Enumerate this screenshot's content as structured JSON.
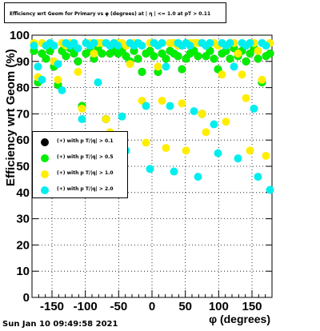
{
  "title": "Efficiency wrt Geom for Primary vs φ (degrees) at | η | <= 1.0 at pT > 0.11",
  "timestamp": "Sun Jan 10 09:49:58 2021",
  "chart_data": {
    "type": "scatter",
    "title": "Efficiency wrt Geom for Primary vs φ (degrees) at | η | <= 1.0 at pT > 0.11",
    "xlabel": "φ (degrees)",
    "ylabel": "Efficiency wrt Geom (%)",
    "xlim": [
      -180,
      180
    ],
    "ylim": [
      0,
      100
    ],
    "xticks": [
      -150,
      -100,
      -50,
      0,
      50,
      100,
      150
    ],
    "yticks": [
      0,
      10,
      20,
      30,
      40,
      50,
      60,
      70,
      80,
      90,
      100
    ],
    "grid": true,
    "legend_position": "center-left",
    "x": [
      -177,
      -171,
      -165,
      -159,
      -153,
      -147,
      -141,
      -135,
      -129,
      -123,
      -117,
      -111,
      -105,
      -99,
      -93,
      -87,
      -81,
      -75,
      -69,
      -63,
      -57,
      -51,
      -45,
      -39,
      -33,
      -27,
      -21,
      -15,
      -9,
      -3,
      3,
      9,
      15,
      21,
      27,
      33,
      39,
      45,
      51,
      57,
      63,
      69,
      75,
      81,
      87,
      93,
      99,
      105,
      111,
      117,
      123,
      129,
      135,
      141,
      147,
      153,
      159,
      165,
      171,
      177
    ],
    "series": [
      {
        "name": "(+) with p T/|q| > 0.1",
        "color": "#000000",
        "values": [
          94,
          82,
          93,
          91,
          94,
          88,
          81,
          94,
          92,
          95,
          93,
          90,
          73,
          93,
          94,
          91,
          95,
          93,
          68,
          93,
          95,
          93,
          94,
          92,
          90,
          94,
          91,
          86,
          93,
          94,
          92,
          86,
          93,
          91,
          94,
          93,
          92,
          87,
          91,
          93,
          94,
          92,
          70,
          92,
          94,
          91,
          87,
          93,
          94,
          91,
          95,
          92,
          94,
          90,
          93,
          95,
          91,
          82,
          92,
          93
        ]
      },
      {
        "name": "(+) with p T/|q| > 0.5",
        "color": "#00ee00",
        "values": [
          94,
          82,
          93,
          91,
          94,
          88,
          81,
          94,
          92,
          95,
          93,
          90,
          73,
          93,
          94,
          91,
          95,
          93,
          68,
          93,
          95,
          93,
          94,
          92,
          90,
          94,
          91,
          86,
          93,
          94,
          92,
          86,
          93,
          91,
          94,
          93,
          92,
          87,
          91,
          93,
          94,
          92,
          70,
          92,
          94,
          91,
          87,
          93,
          94,
          91,
          95,
          92,
          94,
          90,
          93,
          95,
          91,
          82,
          92,
          93
        ]
      },
      {
        "name": "(+) with p T/|q| > 1.0",
        "color": "#ffee00",
        "values": [
          97,
          84,
          97,
          96,
          97,
          90,
          83,
          97,
          96,
          97,
          97,
          86,
          72,
          97,
          97,
          93,
          97,
          97,
          68,
          63,
          97,
          97,
          97,
          96,
          89,
          97,
          97,
          75,
          59,
          97,
          97,
          88,
          75,
          57,
          97,
          97,
          96,
          74,
          56,
          97,
          97,
          97,
          70,
          63,
          97,
          97,
          96,
          85,
          67,
          97,
          97,
          93,
          85,
          76,
          56,
          97,
          94,
          83,
          54,
          97
        ]
      },
      {
        "name": "(+) with p T/|q| > 2.0",
        "color": "#00eeee",
        "values": [
          96,
          88,
          83,
          96,
          97,
          96,
          89,
          79,
          97,
          96,
          97,
          95,
          68,
          97,
          96,
          97,
          82,
          61,
          97,
          96,
          97,
          96,
          69,
          56,
          97,
          96,
          97,
          96,
          73,
          49,
          97,
          96,
          97,
          88,
          73,
          48,
          97,
          96,
          97,
          96,
          71,
          46,
          97,
          96,
          97,
          66,
          55,
          97,
          96,
          97,
          88,
          53,
          97,
          96,
          97,
          72,
          46,
          97,
          96,
          41
        ]
      }
    ]
  }
}
